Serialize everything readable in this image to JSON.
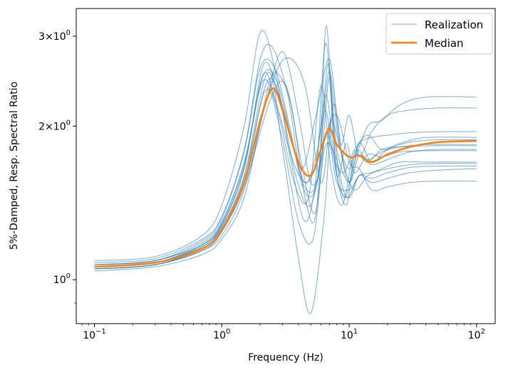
{
  "chart_data": {
    "type": "line",
    "title": "",
    "xlabel": "Frequency (Hz)",
    "ylabel": "5%-Damped, Resp. Spectral Ratio",
    "xscale": "log",
    "yscale": "log",
    "xlim": [
      0.072,
      140
    ],
    "ylim": [
      0.82,
      3.4
    ],
    "x_ticks": [
      {
        "value": 0.1,
        "base": "10",
        "exp": "−1"
      },
      {
        "value": 1,
        "base": "10",
        "exp": "0"
      },
      {
        "value": 10,
        "base": "10",
        "exp": "1"
      },
      {
        "value": 100,
        "base": "10",
        "exp": "2"
      }
    ],
    "y_ticks": [
      {
        "value": 1,
        "base": "10",
        "exp": "0",
        "prefix": ""
      },
      {
        "value": 2,
        "base": "10",
        "exp": "0",
        "prefix": "2×"
      },
      {
        "value": 3,
        "base": "10",
        "exp": "0",
        "prefix": "3×"
      }
    ],
    "grid": false,
    "legend": {
      "placement": "top-right",
      "entries": [
        {
          "name": "Realization",
          "color": "#1f77b4"
        },
        {
          "name": "Median",
          "color": "#ff7f0e"
        }
      ]
    },
    "colors": {
      "realization": "#1f77b4",
      "median": "#ff7f0e"
    },
    "median": {
      "name": "Median",
      "x": [
        0.1,
        0.3,
        0.7,
        1,
        1.5,
        2,
        2.5,
        3,
        4,
        5,
        6,
        7,
        8,
        10,
        12,
        15,
        20,
        30,
        50,
        100
      ],
      "y": [
        1.06,
        1.08,
        1.15,
        1.25,
        1.55,
        2.05,
        2.37,
        2.15,
        1.7,
        1.6,
        1.8,
        1.98,
        1.84,
        1.74,
        1.75,
        1.7,
        1.76,
        1.82,
        1.86,
        1.87
      ]
    },
    "realizations": [
      {
        "x": [
          0.1,
          0.3,
          0.7,
          1,
          1.5,
          2.1,
          2.7,
          3.5,
          4.5,
          5.5,
          6.5,
          7.5,
          9,
          11,
          14,
          18,
          25,
          40,
          100
        ],
        "y": [
          1.07,
          1.09,
          1.17,
          1.28,
          1.65,
          2.62,
          2.38,
          1.9,
          1.55,
          1.75,
          2.15,
          1.75,
          1.62,
          1.8,
          1.92,
          1.8,
          1.85,
          1.9,
          1.9
        ]
      },
      {
        "x": [
          0.1,
          0.3,
          0.7,
          1,
          1.5,
          2.0,
          2.6,
          3.5,
          4.5,
          5.5,
          6.5,
          7.5,
          9,
          11,
          14,
          18,
          25,
          40,
          100
        ],
        "y": [
          1.09,
          1.11,
          1.22,
          1.4,
          2.0,
          3.05,
          2.6,
          1.7,
          1.3,
          1.6,
          2.9,
          2.0,
          1.45,
          1.7,
          2.0,
          2.05,
          2.2,
          2.28,
          2.28
        ]
      },
      {
        "x": [
          0.1,
          0.3,
          0.7,
          1,
          1.5,
          2.2,
          3.0,
          4.0,
          5.0,
          6.0,
          7.0,
          8.0,
          10,
          12,
          15,
          20,
          30,
          50,
          100
        ],
        "y": [
          1.05,
          1.07,
          1.14,
          1.22,
          1.5,
          2.2,
          2.8,
          2.1,
          1.55,
          1.7,
          2.5,
          1.8,
          1.55,
          1.75,
          1.68,
          1.72,
          1.78,
          1.8,
          1.8
        ]
      },
      {
        "x": [
          0.1,
          0.3,
          0.7,
          1,
          1.5,
          2.3,
          3.0,
          4.0,
          5.0,
          6.3,
          7.5,
          9,
          11,
          14,
          18,
          25,
          40,
          100
        ],
        "y": [
          1.06,
          1.08,
          1.16,
          1.27,
          1.6,
          2.55,
          1.8,
          1.1,
          0.86,
          1.3,
          2.2,
          1.7,
          1.5,
          1.6,
          1.65,
          1.7,
          1.7,
          1.7
        ]
      },
      {
        "x": [
          0.1,
          0.3,
          0.7,
          1,
          1.5,
          2.1,
          2.6,
          3.5,
          4.5,
          5.5,
          6.8,
          8,
          10,
          12,
          15,
          20,
          30,
          50,
          100
        ],
        "y": [
          1.04,
          1.06,
          1.12,
          1.2,
          1.45,
          2.15,
          2.55,
          2.2,
          1.45,
          1.35,
          2.65,
          1.6,
          1.45,
          1.6,
          1.55,
          1.58,
          1.62,
          1.64,
          1.65
        ]
      },
      {
        "x": [
          0.1,
          0.3,
          0.7,
          1,
          1.5,
          2.2,
          2.8,
          3.8,
          5.0,
          6.5,
          8,
          10,
          12,
          15,
          20,
          30,
          50,
          100
        ],
        "y": [
          1.05,
          1.07,
          1.14,
          1.24,
          1.55,
          2.4,
          2.3,
          1.6,
          1.4,
          1.9,
          2.1,
          1.7,
          1.65,
          1.5,
          1.52,
          1.55,
          1.56,
          1.56
        ]
      },
      {
        "x": [
          0.1,
          0.3,
          0.7,
          1,
          1.5,
          2.0,
          2.5,
          3.3,
          4.2,
          5.5,
          7.0,
          8.5,
          10,
          12,
          15,
          20,
          30,
          50,
          100
        ],
        "y": [
          1.08,
          1.1,
          1.2,
          1.33,
          1.8,
          2.7,
          2.85,
          2.3,
          1.65,
          2.1,
          2.7,
          1.85,
          2.1,
          1.75,
          1.95,
          2.1,
          2.15,
          2.17,
          2.17
        ]
      },
      {
        "x": [
          0.1,
          0.3,
          0.7,
          1,
          1.5,
          2.3,
          3.2,
          4.5,
          6.0,
          7.2,
          8.5,
          10,
          12,
          15,
          20,
          30,
          50,
          100
        ],
        "y": [
          1.06,
          1.08,
          1.16,
          1.26,
          1.55,
          2.3,
          2.72,
          2.4,
          1.55,
          2.05,
          1.8,
          1.65,
          1.85,
          1.9,
          1.92,
          1.94,
          1.95,
          1.95
        ]
      },
      {
        "x": [
          0.1,
          0.3,
          0.7,
          1,
          1.5,
          2.1,
          2.7,
          3.6,
          4.6,
          5.8,
          6.6,
          7.8,
          9.5,
          11,
          14,
          18,
          25,
          40,
          100
        ],
        "y": [
          1.07,
          1.09,
          1.18,
          1.3,
          1.7,
          2.5,
          2.45,
          1.85,
          1.5,
          1.65,
          3.15,
          1.7,
          1.4,
          1.75,
          1.7,
          1.8,
          1.82,
          1.83,
          1.83
        ]
      },
      {
        "x": [
          0.1,
          0.3,
          0.7,
          1,
          1.5,
          2.4,
          3.2,
          4.2,
          5.4,
          6.6,
          8,
          10,
          12,
          15,
          20,
          30,
          50,
          100
        ],
        "y": [
          1.05,
          1.07,
          1.15,
          1.25,
          1.52,
          2.25,
          2.4,
          1.7,
          1.35,
          1.95,
          1.55,
          1.5,
          1.6,
          1.62,
          1.65,
          1.68,
          1.69,
          1.69
        ]
      },
      {
        "x": [
          0.1,
          0.3,
          0.7,
          1,
          1.5,
          2.1,
          2.8,
          3.7,
          4.8,
          6.0,
          7.2,
          8.8,
          11,
          14,
          18,
          25,
          40,
          100
        ],
        "y": [
          1.06,
          1.08,
          1.17,
          1.29,
          1.68,
          2.45,
          2.1,
          1.55,
          1.45,
          2.4,
          1.65,
          1.4,
          1.78,
          1.72,
          1.78,
          1.82,
          1.84,
          1.84
        ]
      },
      {
        "x": [
          0.1,
          0.3,
          0.7,
          1,
          1.5,
          2.0,
          2.6,
          3.4,
          4.4,
          5.6,
          6.9,
          8.2,
          10,
          12,
          15,
          20,
          30,
          50,
          100
        ],
        "y": [
          1.07,
          1.09,
          1.19,
          1.32,
          1.78,
          2.6,
          2.6,
          2.0,
          1.5,
          1.55,
          2.55,
          1.9,
          1.55,
          1.85,
          1.7,
          1.8,
          1.86,
          1.88,
          1.88
        ]
      },
      {
        "x": [
          0.1,
          0.3,
          0.7,
          1,
          1.5,
          2.2,
          2.9,
          4.0,
          5.2,
          6.4,
          7.8,
          9.5,
          12,
          15,
          20,
          30,
          50,
          100
        ],
        "y": [
          1.05,
          1.07,
          1.15,
          1.26,
          1.58,
          2.35,
          1.95,
          1.3,
          1.2,
          1.8,
          1.75,
          1.45,
          1.6,
          1.58,
          1.62,
          1.66,
          1.67,
          1.67
        ]
      },
      {
        "x": [
          0.1,
          0.3,
          0.7,
          1,
          1.5,
          2.1,
          2.7,
          3.5,
          4.5,
          5.5,
          6.6,
          8.0,
          9.5,
          11,
          14,
          18,
          25,
          40,
          100
        ],
        "y": [
          1.06,
          1.08,
          1.17,
          1.28,
          1.66,
          2.52,
          2.2,
          1.75,
          1.55,
          1.7,
          2.3,
          1.6,
          1.85,
          1.62,
          1.76,
          1.74,
          1.78,
          1.79,
          1.79
        ]
      }
    ]
  }
}
